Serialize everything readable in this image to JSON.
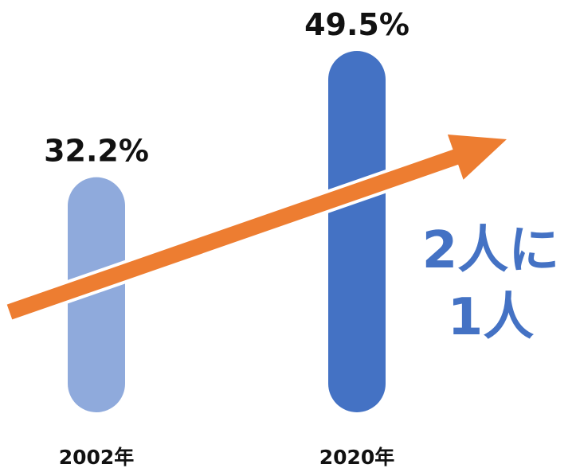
{
  "chart_data": {
    "type": "bar",
    "categories": [
      "2002年",
      "2020年"
    ],
    "values": [
      32.2,
      49.5
    ],
    "value_labels": [
      "32.2%",
      "49.5%"
    ],
    "ylim": [
      0,
      60
    ],
    "grid": false,
    "legend": "none",
    "annotation": {
      "lines": [
        "2人に",
        "1人"
      ]
    },
    "colors": {
      "bars": [
        "#8faadc",
        "#4472c4"
      ],
      "arrow": "#ed7d31",
      "annotation_text": "#4472c4"
    }
  }
}
